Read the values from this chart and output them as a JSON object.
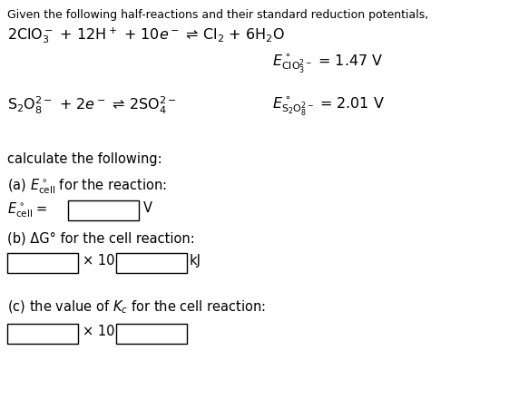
{
  "bg_color": "#ffffff",
  "text_color": "#000000",
  "title_line": "Given the following half-reactions and their standard reduction potentials,",
  "rxn1": "2ClO$_3^-$ + 12H$^+$ + 10$e^-$ ⇌ Cl$_2$ + 6H$_2$O",
  "rxn1_E": "$E^\\circ_{\\mathrm{ClO_3^{2-}}}$ = 1.47 V",
  "rxn2": "S$_2$O$_8^{2-}$ + 2$e^-$ ⇌ 2SO$_4^{2-}$",
  "rxn2_E": "$E^\\circ_{\\mathrm{S_2O_8^{2-}}}$ = 2.01 V",
  "calc_label": "calculate the following:",
  "part_a_label": "(a) $E^\\circ_{\\mathrm{cell}}$ for the reaction:",
  "part_a_line": "$E^\\circ_{\\mathrm{cell}}$ =",
  "part_a_unit": "V",
  "part_b_label": "(b) ΔG° for the cell reaction:",
  "part_b_unit": "kJ",
  "part_b_x10": "× 10",
  "part_c_label": "(c) the value of $K_c$ for the cell reaction:",
  "part_c_x10": "× 10",
  "box_facecolor": "#ffffff",
  "box_edgecolor": "#000000",
  "font_size_title": 9.0,
  "font_size_rxn": 11.5,
  "font_size_body": 10.5,
  "figwidth": 5.61,
  "figheight": 4.52,
  "dpi": 100
}
